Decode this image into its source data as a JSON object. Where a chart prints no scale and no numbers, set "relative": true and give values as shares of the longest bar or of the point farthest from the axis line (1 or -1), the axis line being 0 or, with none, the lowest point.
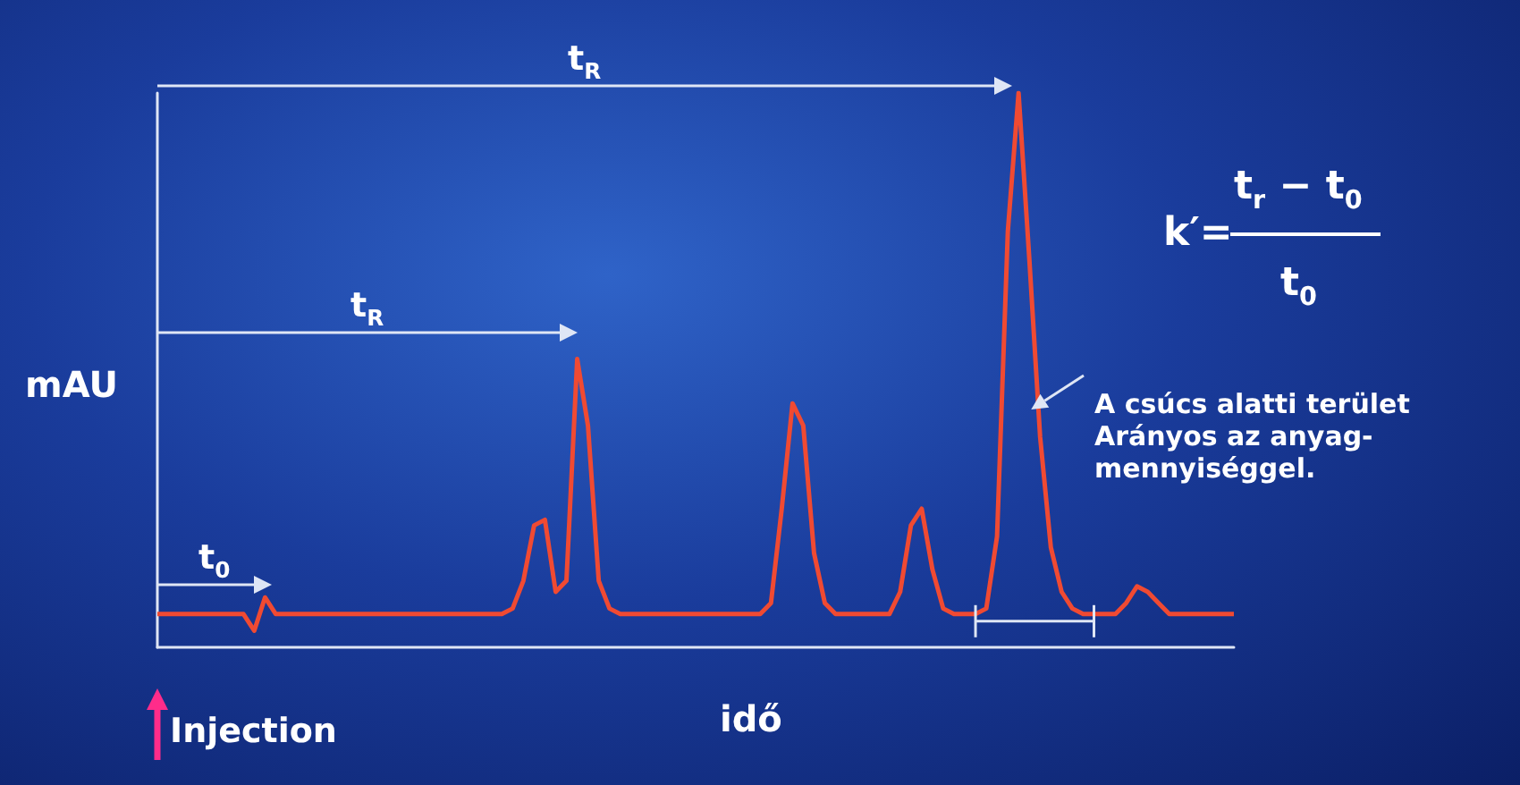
{
  "chart_data": {
    "type": "line",
    "relative": true,
    "xlabel": "idő",
    "ylabel": "mAU",
    "categories": [
      null,
      null,
      null,
      null,
      null,
      null,
      null,
      null,
      null,
      null,
      null,
      null,
      null,
      null,
      null,
      null,
      null,
      null,
      null,
      null,
      null,
      null,
      null,
      null,
      null,
      null,
      null,
      null,
      null,
      null,
      null,
      null,
      null,
      null,
      null,
      null,
      null,
      null,
      null,
      null,
      null,
      null,
      null,
      null,
      null,
      null,
      null,
      null,
      null,
      null,
      null,
      null,
      null,
      null,
      null,
      null,
      null,
      null,
      null,
      null,
      null,
      null,
      null,
      null,
      null,
      null,
      null,
      null,
      null,
      null,
      null,
      null,
      null,
      null,
      null,
      null,
      null,
      null,
      null,
      null,
      null,
      null,
      null,
      null,
      null,
      null,
      null,
      null,
      null,
      null,
      null,
      null,
      null,
      null,
      null,
      null,
      null,
      null,
      null,
      null,
      null
    ],
    "series": [
      {
        "color": "#f04a32",
        "values": [
          0.06,
          0.06,
          0.06,
          0.06,
          0.06,
          0.06,
          0.06,
          0.06,
          0.06,
          0.03,
          0.09,
          0.06,
          0.06,
          0.06,
          0.06,
          0.06,
          0.06,
          0.06,
          0.06,
          0.06,
          0.06,
          0.06,
          0.06,
          0.06,
          0.06,
          0.06,
          0.06,
          0.06,
          0.06,
          0.06,
          0.06,
          0.06,
          0.06,
          0.07,
          0.12,
          0.22,
          0.23,
          0.1,
          0.12,
          0.52,
          0.4,
          0.12,
          0.07,
          0.06,
          0.06,
          0.06,
          0.06,
          0.06,
          0.06,
          0.06,
          0.06,
          0.06,
          0.06,
          0.06,
          0.06,
          0.06,
          0.06,
          0.08,
          0.25,
          0.44,
          0.4,
          0.17,
          0.08,
          0.06,
          0.06,
          0.06,
          0.06,
          0.06,
          0.06,
          0.1,
          0.22,
          0.25,
          0.14,
          0.07,
          0.06,
          0.06,
          0.06,
          0.07,
          0.2,
          0.75,
          1,
          0.7,
          0.38,
          0.18,
          0.1,
          0.07,
          0.06,
          0.06,
          0.06,
          0.06,
          0.08,
          0.11,
          0.1,
          0.08,
          0.06,
          0.06,
          0.06,
          0.06,
          0.06,
          0.06,
          0.06
        ]
      }
    ],
    "annotations": [
      "t$_{R}$",
      "t$_{R}$",
      "t$_{0}$",
      "k′=",
      "t$_{r}$ − t$_{0}$",
      "t$_{0}$",
      "A csúcs alatti terület\nArányos az anyag-\nmennyiséggel.",
      "Injection"
    ]
  }
}
